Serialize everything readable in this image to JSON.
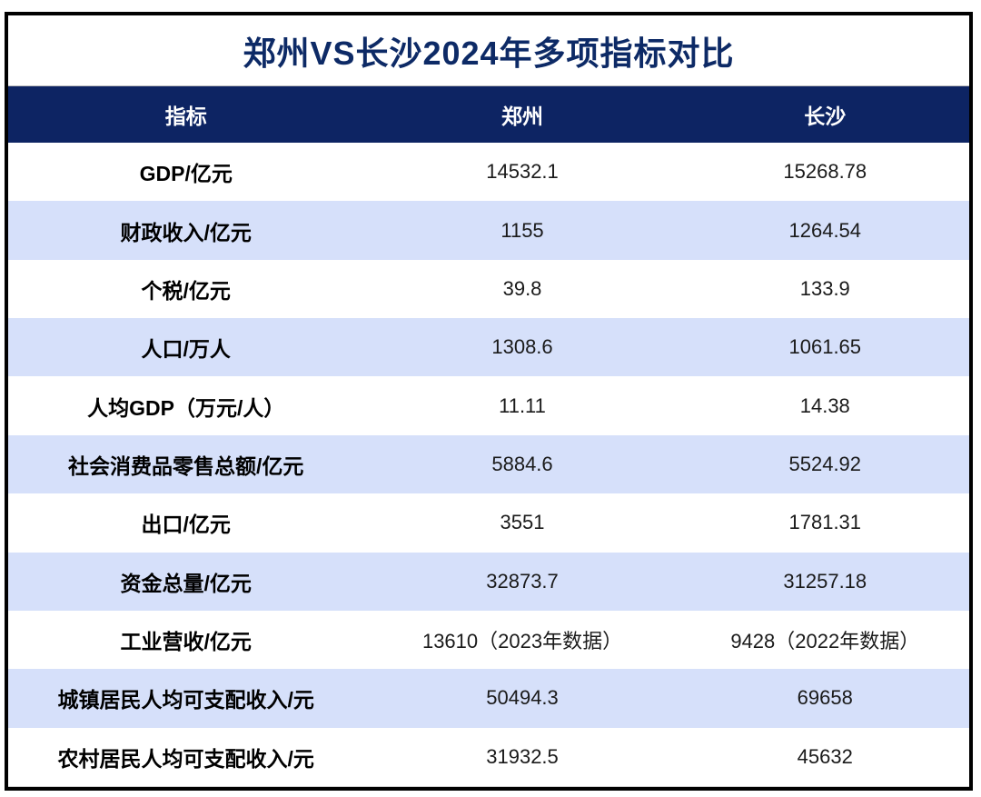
{
  "title": "郑州VS长沙2024年多项指标对比",
  "colors": {
    "header_bg": "#0d2463",
    "header_text": "#ffffff",
    "title_text": "#0d2a66",
    "stripe_bg": "#d6e0fa",
    "row_bg": "#ffffff",
    "outer_border": "#000000"
  },
  "chart_data": {
    "type": "table",
    "title": "郑州VS长沙2024年多项指标对比",
    "columns": [
      "指标",
      "郑州",
      "长沙"
    ],
    "rows": [
      [
        "GDP/亿元",
        "14532.1",
        "15268.78"
      ],
      [
        "财政收入/亿元",
        "1155",
        "1264.54"
      ],
      [
        "个税/亿元",
        "39.8",
        "133.9"
      ],
      [
        "人口/万人",
        "1308.6",
        "1061.65"
      ],
      [
        "人均GDP（万元/人）",
        "11.11",
        "14.38"
      ],
      [
        "社会消费品零售总额/亿元",
        "5884.6",
        "5524.92"
      ],
      [
        "出口/亿元",
        "3551",
        "1781.31"
      ],
      [
        "资金总量/亿元",
        "32873.7",
        "31257.18"
      ],
      [
        "工业营收/亿元",
        "13610（2023年数据）",
        "9428（2022年数据）"
      ],
      [
        "城镇居民人均可支配收入/元",
        "50494.3",
        "69658"
      ],
      [
        "农村居民人均可支配收入/元",
        "31932.5",
        "45632"
      ]
    ],
    "layout": {
      "stripes": "alternating white and light blue starting white",
      "alignment": "all cells centered",
      "legend": "none",
      "grid": "off"
    }
  }
}
